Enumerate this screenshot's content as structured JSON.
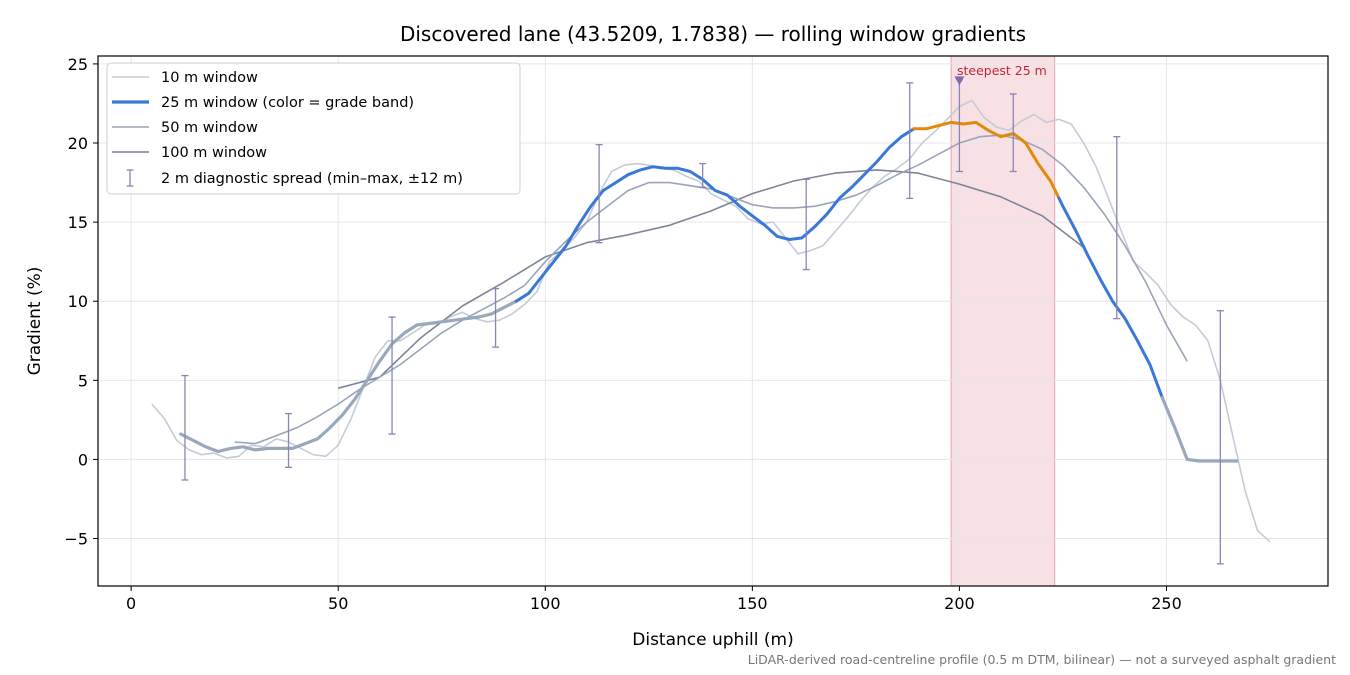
{
  "chart_data": {
    "type": "line",
    "title": "Discovered lane (43.5209, 1.7838) — rolling window gradients",
    "xlabel": "Distance uphill (m)",
    "ylabel": "Gradient (%)",
    "xlim": [
      -8,
      289
    ],
    "ylim": [
      -8,
      25.5
    ],
    "xticks": [
      0,
      50,
      100,
      150,
      200,
      250
    ],
    "yticks": [
      -5,
      0,
      5,
      10,
      15,
      20,
      25
    ],
    "grid": true,
    "legend_position": "top-left",
    "footnote": "LiDAR-derived road-centreline profile (0.5 m DTM, bilinear) — not a surveyed asphalt gradient",
    "highlight": {
      "label": "steepest 25 m",
      "x_start": 198,
      "x_end": 223,
      "marker_x": 200,
      "marker_y": 23.9,
      "color": "#f0c4c9"
    },
    "grade_band_colors": {
      "low": "#9aa8bb",
      "mid": "#3a78d8",
      "high": "#e08a0c"
    },
    "series": [
      {
        "name": "10 m window",
        "color": "#c5cbd6",
        "x": [
          5,
          8,
          11,
          14,
          17,
          20,
          23,
          26,
          29,
          32,
          35,
          38,
          41,
          44,
          47,
          50,
          53,
          56,
          59,
          62,
          65,
          68,
          71,
          74,
          77,
          80,
          83,
          86,
          89,
          92,
          95,
          98,
          101,
          104,
          107,
          110,
          113,
          116,
          119,
          122,
          125,
          128,
          131,
          134,
          137,
          140,
          143,
          146,
          149,
          152,
          155,
          158,
          161,
          164,
          167,
          170,
          173,
          176,
          179,
          182,
          185,
          188,
          191,
          194,
          197,
          200,
          203,
          206,
          209,
          212,
          215,
          218,
          221,
          224,
          227,
          230,
          233,
          236,
          239,
          242,
          245,
          248,
          251,
          254,
          257,
          260,
          263,
          266,
          269,
          272,
          275
        ],
        "y": [
          3.5,
          2.6,
          1.2,
          0.6,
          0.3,
          0.4,
          0.1,
          0.2,
          0.9,
          0.8,
          1.3,
          1.1,
          0.7,
          0.3,
          0.2,
          0.9,
          2.5,
          4.5,
          6.5,
          7.5,
          7.5,
          8.0,
          8.5,
          8.6,
          9.0,
          9.3,
          8.9,
          8.7,
          8.8,
          9.2,
          9.8,
          10.6,
          12.5,
          13.2,
          14.0,
          15.0,
          16.8,
          18.2,
          18.6,
          18.7,
          18.6,
          18.4,
          18.3,
          17.9,
          17.6,
          16.8,
          16.4,
          16.0,
          15.2,
          14.9,
          15.0,
          14.0,
          13.0,
          13.2,
          13.5,
          14.4,
          15.3,
          16.3,
          17.2,
          17.9,
          18.4,
          19.0,
          20.0,
          20.7,
          21.5,
          22.3,
          22.7,
          21.6,
          21.0,
          20.8,
          21.4,
          21.8,
          21.3,
          21.5,
          21.2,
          20.0,
          18.5,
          16.5,
          14.5,
          12.5,
          11.8,
          11.0,
          9.8,
          9.0,
          8.5,
          7.5,
          5.0,
          1.5,
          -2.0,
          -4.5,
          -5.2
        ]
      },
      {
        "name": "25 m window (color = grade band)",
        "color": "#3a78d8",
        "x": [
          12,
          15,
          18,
          21,
          24,
          27,
          30,
          33,
          36,
          39,
          42,
          45,
          48,
          51,
          54,
          57,
          60,
          63,
          66,
          69,
          72,
          75,
          78,
          81,
          84,
          87,
          90,
          93,
          96,
          99,
          102,
          105,
          108,
          111,
          114,
          117,
          120,
          123,
          126,
          129,
          132,
          135,
          138,
          141,
          144,
          147,
          150,
          153,
          156,
          159,
          162,
          165,
          168,
          171,
          174,
          177,
          180,
          183,
          186,
          189,
          192,
          195,
          198,
          201,
          204,
          207,
          210,
          213,
          216,
          219,
          222,
          225,
          228,
          231,
          234,
          237,
          240,
          243,
          246,
          249,
          252,
          255,
          258,
          261,
          264,
          267
        ],
        "y": [
          1.6,
          1.2,
          0.8,
          0.5,
          0.7,
          0.8,
          0.6,
          0.7,
          0.7,
          0.7,
          1.0,
          1.3,
          2.0,
          2.8,
          3.8,
          5.0,
          6.2,
          7.3,
          8.0,
          8.5,
          8.6,
          8.7,
          8.8,
          8.9,
          9.0,
          9.2,
          9.6,
          10.0,
          10.5,
          11.5,
          12.5,
          13.5,
          14.8,
          16.0,
          17.0,
          17.5,
          18.0,
          18.3,
          18.5,
          18.4,
          18.4,
          18.2,
          17.7,
          17.0,
          16.7,
          16.0,
          15.4,
          14.8,
          14.1,
          13.9,
          14.0,
          14.7,
          15.5,
          16.5,
          17.2,
          18.0,
          18.8,
          19.7,
          20.4,
          20.9,
          20.9,
          21.1,
          21.3,
          21.2,
          21.3,
          20.8,
          20.4,
          20.6,
          20.0,
          18.7,
          17.6,
          16.0,
          14.5,
          12.9,
          11.4,
          10.0,
          8.9,
          7.5,
          6.0,
          3.9,
          2.0,
          0.0,
          -0.1,
          -0.1,
          -0.1,
          -0.1
        ],
        "band_colors": [
          [
            "#9aa8bb",
            12,
            93
          ],
          [
            "#3a78d8",
            93,
            189
          ],
          [
            "#e08a0c",
            189,
            224
          ],
          [
            "#3a78d8",
            224,
            249
          ],
          [
            "#9aa8bb",
            249,
            267
          ]
        ]
      },
      {
        "name": "50 m window",
        "color": "#9aa4b8",
        "x": [
          25,
          30,
          35,
          40,
          45,
          50,
          55,
          60,
          65,
          70,
          75,
          80,
          85,
          90,
          95,
          100,
          105,
          110,
          115,
          120,
          125,
          130,
          135,
          140,
          145,
          150,
          155,
          160,
          165,
          170,
          175,
          180,
          185,
          190,
          195,
          200,
          205,
          210,
          215,
          220,
          225,
          230,
          235,
          240,
          245,
          250,
          255
        ],
        "y": [
          1.1,
          1.0,
          1.5,
          2.0,
          2.7,
          3.5,
          4.4,
          5.2,
          6.0,
          7.0,
          8.0,
          8.8,
          9.5,
          10.2,
          11.0,
          12.5,
          13.8,
          15.0,
          16.0,
          17.0,
          17.5,
          17.5,
          17.3,
          17.1,
          16.6,
          16.1,
          15.9,
          15.9,
          16.0,
          16.3,
          16.7,
          17.3,
          18.0,
          18.6,
          19.3,
          20.0,
          20.4,
          20.5,
          20.2,
          19.6,
          18.6,
          17.2,
          15.5,
          13.5,
          11.2,
          8.5,
          6.2
        ]
      },
      {
        "name": "100 m window",
        "color": "#7c8599",
        "x": [
          50,
          60,
          70,
          80,
          90,
          100,
          110,
          120,
          130,
          140,
          150,
          160,
          170,
          180,
          190,
          200,
          210,
          220,
          230
        ],
        "y": [
          4.5,
          5.2,
          7.7,
          9.7,
          11.2,
          12.8,
          13.7,
          14.2,
          14.8,
          15.7,
          16.8,
          17.6,
          18.1,
          18.3,
          18.1,
          17.4,
          16.6,
          15.4,
          13.4
        ]
      },
      {
        "name": "2 m diagnostic spread (min–max, ±12 m)",
        "color": "#8a84b3",
        "x": [
          13,
          38,
          63,
          88,
          113,
          138,
          163,
          188,
          200,
          213,
          238,
          263
        ],
        "y": [
          1.5,
          1.2,
          5.3,
          9.0,
          16.7,
          18.0,
          14.9,
          20.2,
          21.2,
          20.7,
          14.7,
          1.4
        ],
        "ymin": [
          -1.3,
          -0.5,
          1.6,
          7.1,
          13.7,
          17.2,
          12.0,
          16.5,
          18.2,
          18.2,
          8.9,
          -6.6
        ],
        "ymax": [
          5.3,
          2.9,
          9.0,
          10.8,
          19.9,
          18.7,
          17.7,
          23.8,
          24.0,
          23.1,
          20.4,
          9.4
        ]
      }
    ]
  }
}
